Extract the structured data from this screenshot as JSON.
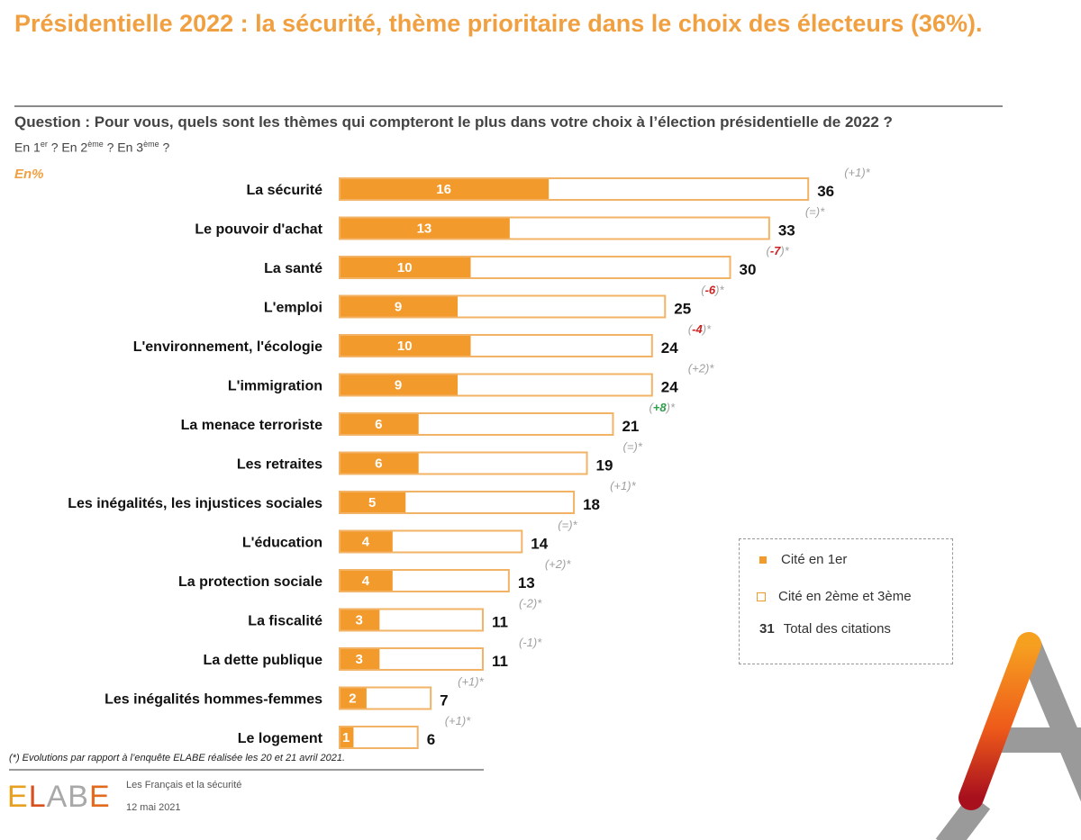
{
  "header": {
    "title": "Présidentielle 2022 : la sécurité, thème prioritaire dans le choix des électeurs (36%).",
    "question": "Question : Pour vous, quels sont les thèmes qui compteront le plus dans votre choix à l’élection présidentielle de 2022 ?",
    "subquestion_parts": [
      "En 1",
      "er",
      " ? En 2",
      "ème",
      " ? En 3",
      "ème",
      " ?"
    ],
    "unit": "En%"
  },
  "colors": {
    "accent": "#f39a2c",
    "title": "#f0a040",
    "negative": "#cc1f1f",
    "positive": "#2e9e4a",
    "neutral": "#a0a0a0"
  },
  "chart_data": {
    "type": "bar",
    "orientation": "horizontal",
    "stacked": true,
    "title": "Présidentielle 2022 : la sécurité, thème prioritaire dans le choix des électeurs (36%).",
    "xlabel": "",
    "ylabel": "",
    "unit": "%",
    "xlim": [
      0,
      36
    ],
    "grid": false,
    "legend_position": "right",
    "categories": [
      "La sécurité",
      "Le pouvoir d'achat",
      "La santé",
      "L'emploi",
      "L'environnement, l'écologie",
      "L'immigration",
      "La menace terroriste",
      "Les retraites",
      "Les inégalités, les injustices sociales",
      "L'éducation",
      "La protection sociale",
      "La fiscalité",
      "La dette publique",
      "Les inégalités hommes-femmes",
      "Le logement"
    ],
    "series": [
      {
        "name": "Cité en 1er",
        "values": [
          16,
          13,
          10,
          9,
          10,
          9,
          6,
          6,
          5,
          4,
          4,
          3,
          3,
          2,
          1
        ]
      },
      {
        "name": "Total des citations",
        "values": [
          36,
          33,
          30,
          25,
          24,
          24,
          21,
          19,
          18,
          14,
          13,
          11,
          11,
          7,
          6
        ]
      }
    ],
    "evolutions": [
      "(+1)*",
      "(=)*",
      "(-7)*",
      "(-6)*",
      "(-4)*",
      "(+2)*",
      "(+8)*",
      "(=)*",
      "(+1)*",
      "(=)*",
      "(+2)*",
      "(-2)*",
      "(-1)*",
      "(+1)*",
      "(+1)*"
    ],
    "evolution_highlight": [
      "none",
      "none",
      "neg",
      "neg",
      "neg",
      "none",
      "pos",
      "none",
      "none",
      "none",
      "none",
      "none",
      "none",
      "none",
      "none"
    ]
  },
  "legend": {
    "first": "Cité en 1er",
    "second": "Cité en 2ème et 3ème",
    "total_value": "31",
    "total_label": "Total des citations"
  },
  "footer": {
    "note": "(*) Evolutions par rapport à l’enquête ELABE réalisée les 20 et 21 avril 2021.",
    "logo_letters": [
      "E",
      "L",
      "A",
      "B",
      "E"
    ],
    "source_title": "Les Français et la sécurité",
    "source_date": "12 mai 2021"
  }
}
